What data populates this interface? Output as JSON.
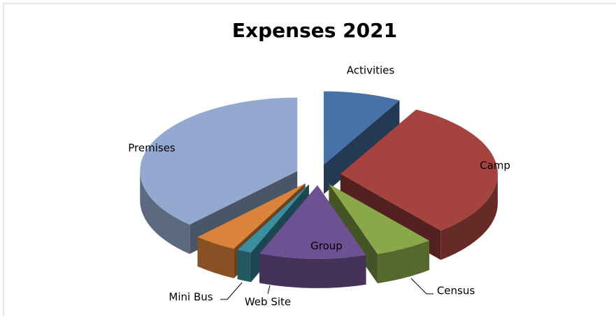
{
  "chart_data": {
    "type": "pie",
    "title": "Expenses 2021",
    "categories": [
      "Activities",
      "Camp",
      "Census",
      "Group",
      "Web Site",
      "Mini Bus",
      "Premises"
    ],
    "values": [
      8,
      31,
      6,
      11,
      1.5,
      4.5,
      38
    ],
    "colors": [
      "#4672a8",
      "#a5433f",
      "#8aa84a",
      "#6e5193",
      "#3a8ea0",
      "#d9833b",
      "#93a9d0"
    ]
  }
}
